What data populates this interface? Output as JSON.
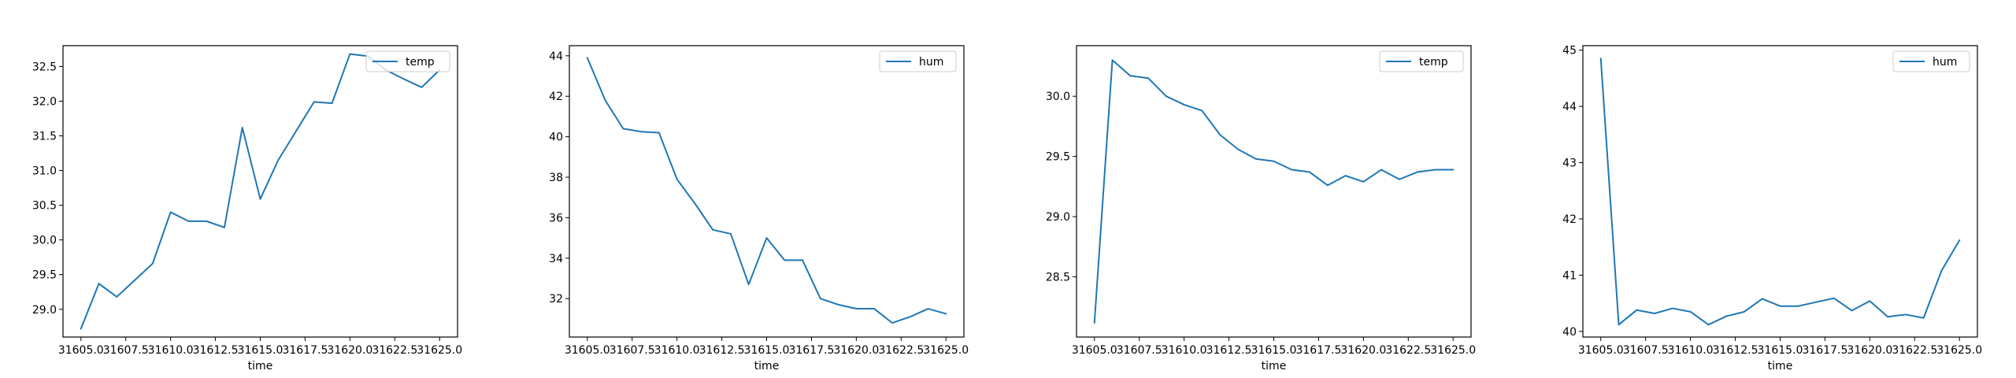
{
  "colors": {
    "series": "#1f77b4",
    "axes": "#000000",
    "legend_border": "#cccccc",
    "background": "#ffffff"
  },
  "chart_data": [
    {
      "type": "line",
      "xlabel": "time",
      "ylabel": "",
      "grid": false,
      "legend_position": "top-right",
      "xlim": [
        31604.0,
        31626.0
      ],
      "ylim": [
        28.6,
        32.8
      ],
      "xticks": [
        31605.0,
        31607.5,
        31610.0,
        31612.5,
        31615.0,
        31617.5,
        31620.0,
        31622.5,
        31625.0
      ],
      "xtick_labels": [
        "31605.0",
        "31607.5",
        "31610.0",
        "31612.5",
        "31615.0",
        "31617.5",
        "31620.0",
        "31622.5",
        "31625.0"
      ],
      "yticks": [
        29.0,
        29.5,
        30.0,
        30.5,
        31.0,
        31.5,
        32.0,
        32.5
      ],
      "ytick_labels": [
        "29.0",
        "29.5",
        "30.0",
        "30.5",
        "31.0",
        "31.5",
        "32.0",
        "32.5"
      ],
      "x": [
        31605,
        31606,
        31607,
        31608,
        31609,
        31610,
        31611,
        31612,
        31613,
        31614,
        31615,
        31616,
        31617,
        31618,
        31619,
        31620,
        31621,
        31622,
        31623,
        31624,
        31625
      ],
      "series": [
        {
          "name": "temp",
          "values": [
            28.72,
            29.37,
            29.18,
            29.42,
            29.66,
            30.4,
            30.27,
            30.27,
            30.18,
            31.62,
            30.59,
            31.15,
            31.57,
            31.99,
            31.97,
            32.68,
            32.65,
            32.45,
            32.32,
            32.2,
            32.45
          ]
        }
      ]
    },
    {
      "type": "line",
      "xlabel": "time",
      "ylabel": "",
      "grid": false,
      "legend_position": "top-right",
      "xlim": [
        31604.0,
        31626.0
      ],
      "ylim": [
        30.1,
        44.5
      ],
      "xticks": [
        31605.0,
        31607.5,
        31610.0,
        31612.5,
        31615.0,
        31617.5,
        31620.0,
        31622.5,
        31625.0
      ],
      "xtick_labels": [
        "31605.0",
        "31607.5",
        "31610.0",
        "31612.5",
        "31615.0",
        "31617.5",
        "31620.0",
        "31622.5",
        "31625.0"
      ],
      "yticks": [
        32,
        34,
        36,
        38,
        40,
        42,
        44
      ],
      "ytick_labels": [
        "32",
        "34",
        "36",
        "38",
        "40",
        "42",
        "44"
      ],
      "x": [
        31605,
        31606,
        31607,
        31608,
        31609,
        31610,
        31611,
        31612,
        31613,
        31614,
        31615,
        31616,
        31617,
        31618,
        31619,
        31620,
        31621,
        31622,
        31623,
        31624,
        31625
      ],
      "series": [
        {
          "name": "hum",
          "values": [
            43.9,
            41.8,
            40.4,
            40.25,
            40.2,
            37.9,
            36.7,
            35.4,
            35.2,
            32.7,
            35.0,
            33.9,
            33.9,
            32.0,
            31.7,
            31.5,
            31.5,
            30.8,
            31.1,
            31.5,
            31.25
          ]
        }
      ]
    },
    {
      "type": "line",
      "xlabel": "time",
      "ylabel": "",
      "grid": false,
      "legend_position": "top-right",
      "xlim": [
        31604.0,
        31626.0
      ],
      "ylim": [
        28.0,
        30.42
      ],
      "xticks": [
        31605.0,
        31607.5,
        31610.0,
        31612.5,
        31615.0,
        31617.5,
        31620.0,
        31622.5,
        31625.0
      ],
      "xtick_labels": [
        "31605.0",
        "31607.5",
        "31610.0",
        "31612.5",
        "31615.0",
        "31617.5",
        "31620.0",
        "31622.5",
        "31625.0"
      ],
      "yticks": [
        28.5,
        29.0,
        29.5,
        30.0
      ],
      "ytick_labels": [
        "28.5",
        "29.0",
        "29.5",
        "30.0"
      ],
      "x": [
        31605,
        31606,
        31607,
        31608,
        31609,
        31610,
        31611,
        31612,
        31613,
        31614,
        31615,
        31616,
        31617,
        31618,
        31619,
        31620,
        31621,
        31622,
        31623,
        31624,
        31625
      ],
      "series": [
        {
          "name": "temp",
          "values": [
            28.12,
            30.3,
            30.17,
            30.15,
            30.0,
            29.93,
            29.88,
            29.68,
            29.56,
            29.48,
            29.46,
            29.39,
            29.37,
            29.26,
            29.34,
            29.29,
            29.39,
            29.31,
            29.37,
            29.39,
            29.39
          ]
        }
      ]
    },
    {
      "type": "line",
      "xlabel": "time",
      "ylabel": "",
      "grid": false,
      "legend_position": "top-right",
      "xlim": [
        31604.0,
        31626.0
      ],
      "ylim": [
        39.9,
        45.08
      ],
      "xticks": [
        31605.0,
        31607.5,
        31610.0,
        31612.5,
        31615.0,
        31617.5,
        31620.0,
        31622.5,
        31625.0
      ],
      "xtick_labels": [
        "31605.0",
        "31607.5",
        "31610.0",
        "31612.5",
        "31615.0",
        "31617.5",
        "31620.0",
        "31622.5",
        "31625.0"
      ],
      "yticks": [
        40,
        41,
        42,
        43,
        44,
        45
      ],
      "ytick_labels": [
        "40",
        "41",
        "42",
        "43",
        "44",
        "45"
      ],
      "x": [
        31605,
        31606,
        31607,
        31608,
        31609,
        31610,
        31611,
        31612,
        31613,
        31614,
        31615,
        31616,
        31617,
        31618,
        31619,
        31620,
        31621,
        31622,
        31623,
        31624,
        31625
      ],
      "series": [
        {
          "name": "hum",
          "values": [
            44.85,
            40.12,
            40.38,
            40.32,
            40.41,
            40.35,
            40.12,
            40.27,
            40.35,
            40.58,
            40.45,
            40.45,
            40.52,
            40.59,
            40.37,
            40.54,
            40.26,
            40.3,
            40.24,
            41.08,
            41.62
          ]
        }
      ]
    }
  ]
}
